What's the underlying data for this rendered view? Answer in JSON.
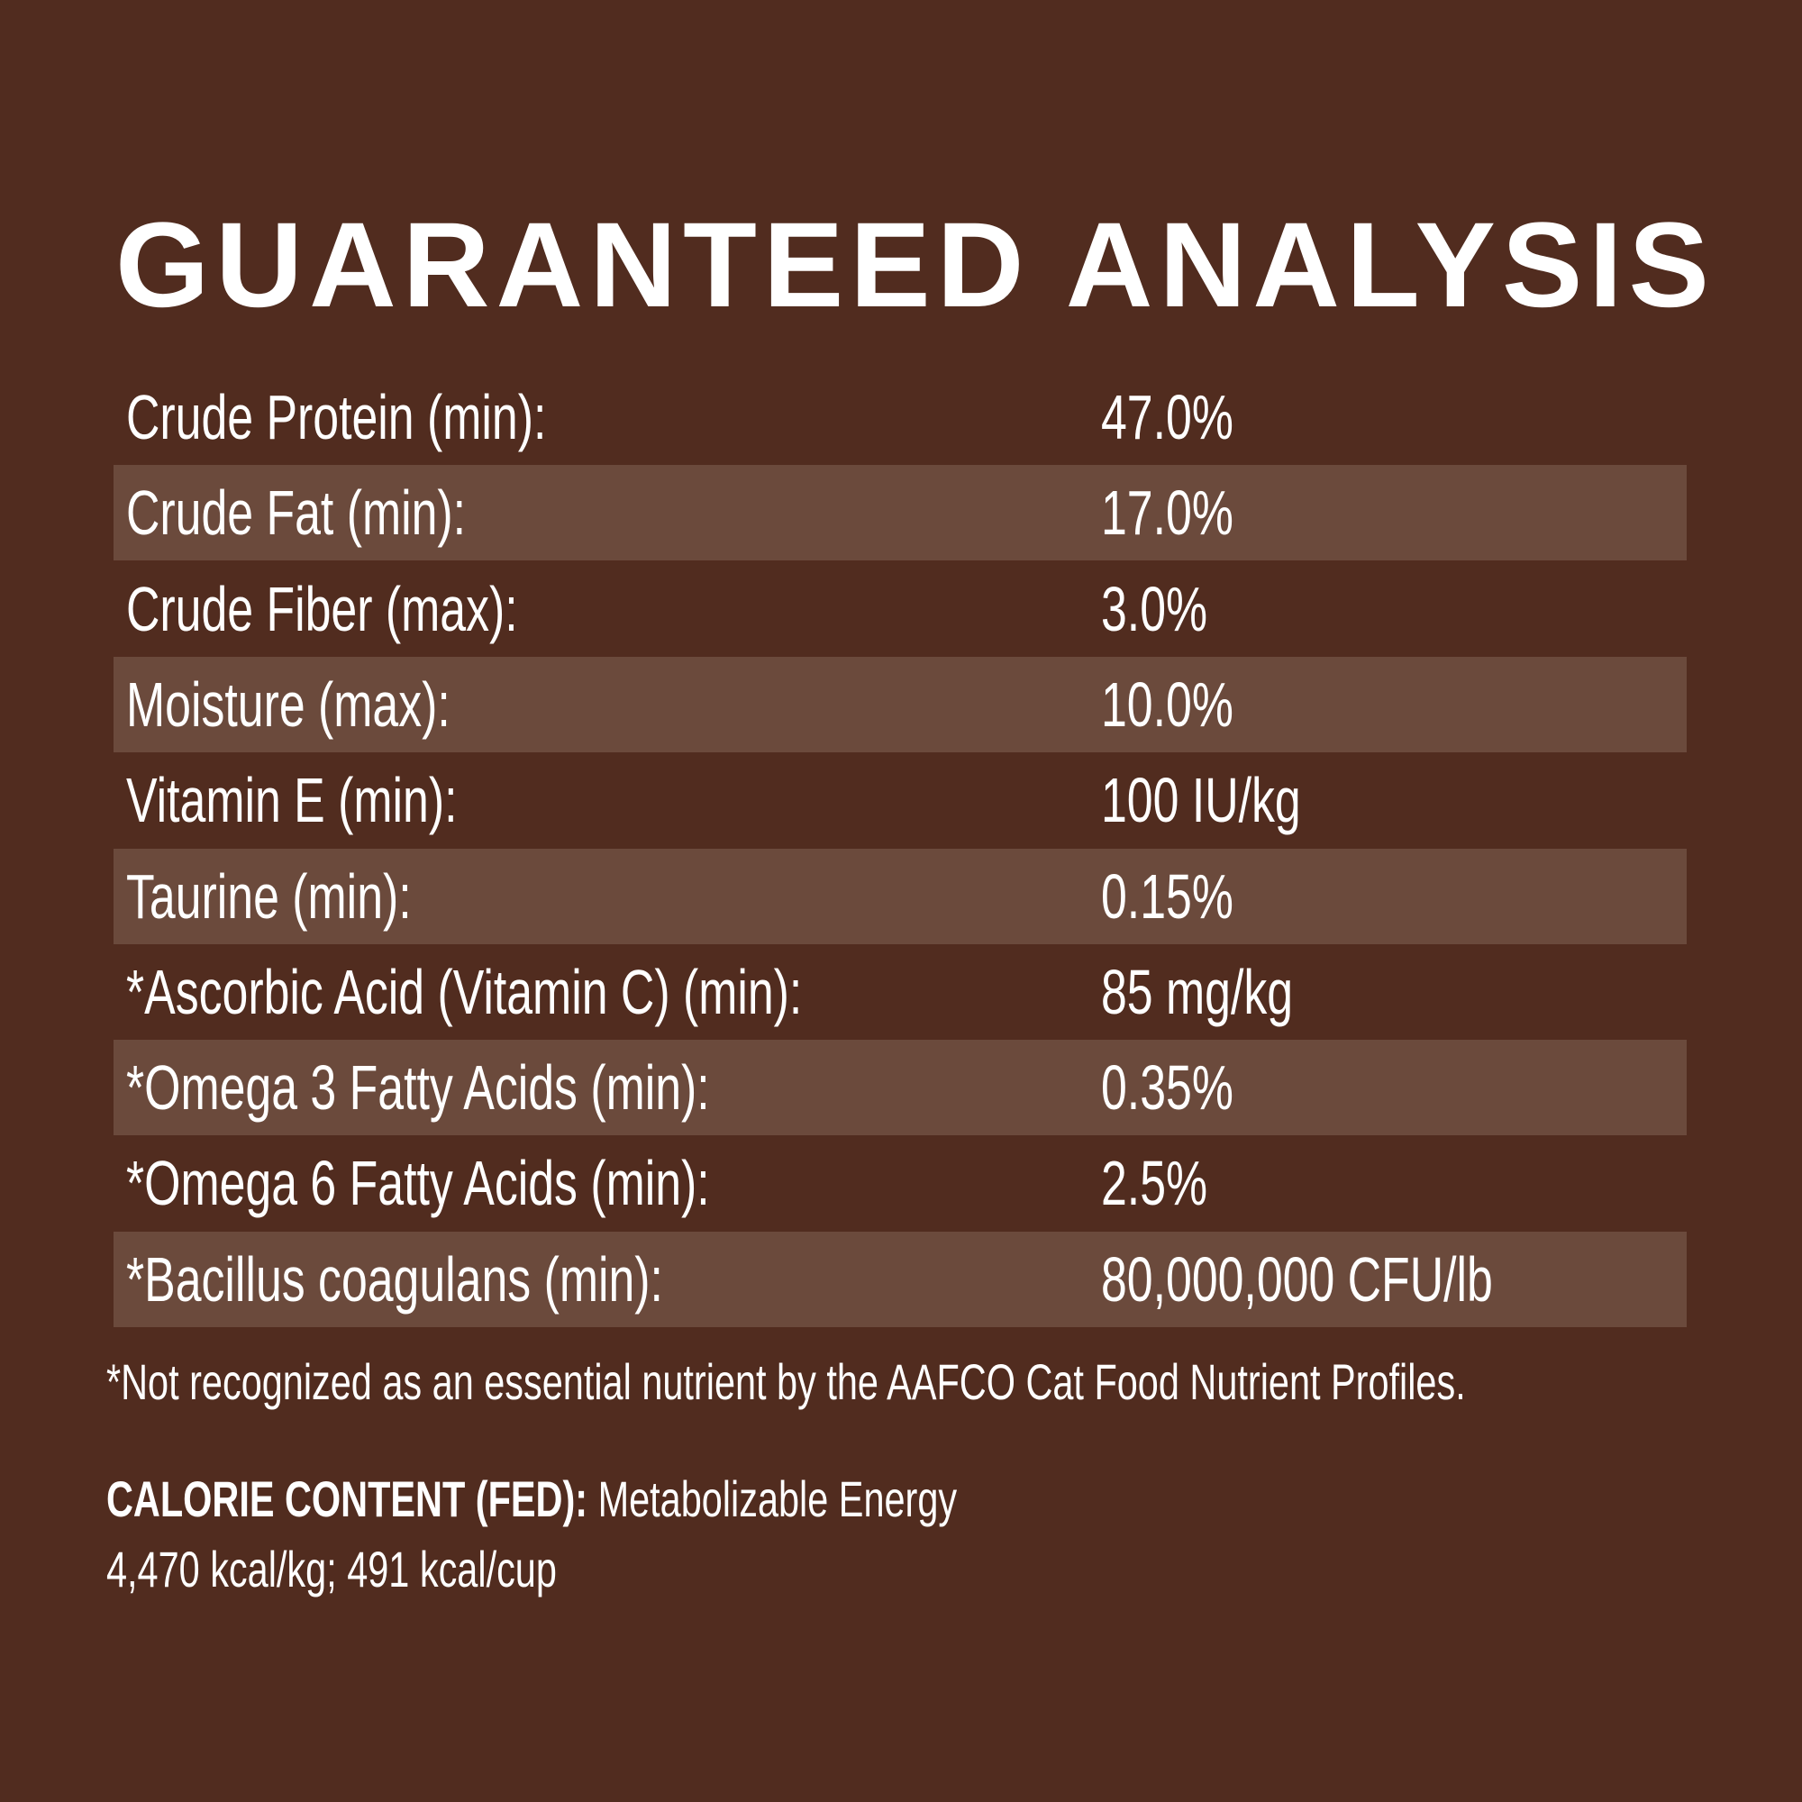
{
  "title": "GUARANTEED ANALYSIS",
  "colors": {
    "background": "#512c1f",
    "stripe": "#6b4a3c",
    "text": "#ffffff"
  },
  "rows": [
    {
      "label": "Crude Protein (min):",
      "value": "47.0%"
    },
    {
      "label": "Crude Fat (min):",
      "value": "17.0%"
    },
    {
      "label": "Crude Fiber (max):",
      "value": "3.0%"
    },
    {
      "label": "Moisture (max):",
      "value": "10.0%"
    },
    {
      "label": "Vitamin E (min):",
      "value": "100 IU/kg"
    },
    {
      "label": "Taurine (min):",
      "value": "0.15%"
    },
    {
      "label": "*Ascorbic Acid (Vitamin C) (min):",
      "value": "85 mg/kg"
    },
    {
      "label": "*Omega 3 Fatty Acids (min):",
      "value": "0.35%"
    },
    {
      "label": "*Omega 6 Fatty Acids (min):",
      "value": "2.5%"
    },
    {
      "label": "*Bacillus coagulans (min):",
      "value": "80,000,000 CFU/lb"
    }
  ],
  "footnote": "*Not recognized as an essential nutrient by the AAFCO Cat Food Nutrient Profiles.",
  "calorie": {
    "heading": "CALORIE CONTENT (FED):",
    "text": " Metabolizable Energy",
    "values": "4,470 kcal/kg; 491 kcal/cup"
  }
}
